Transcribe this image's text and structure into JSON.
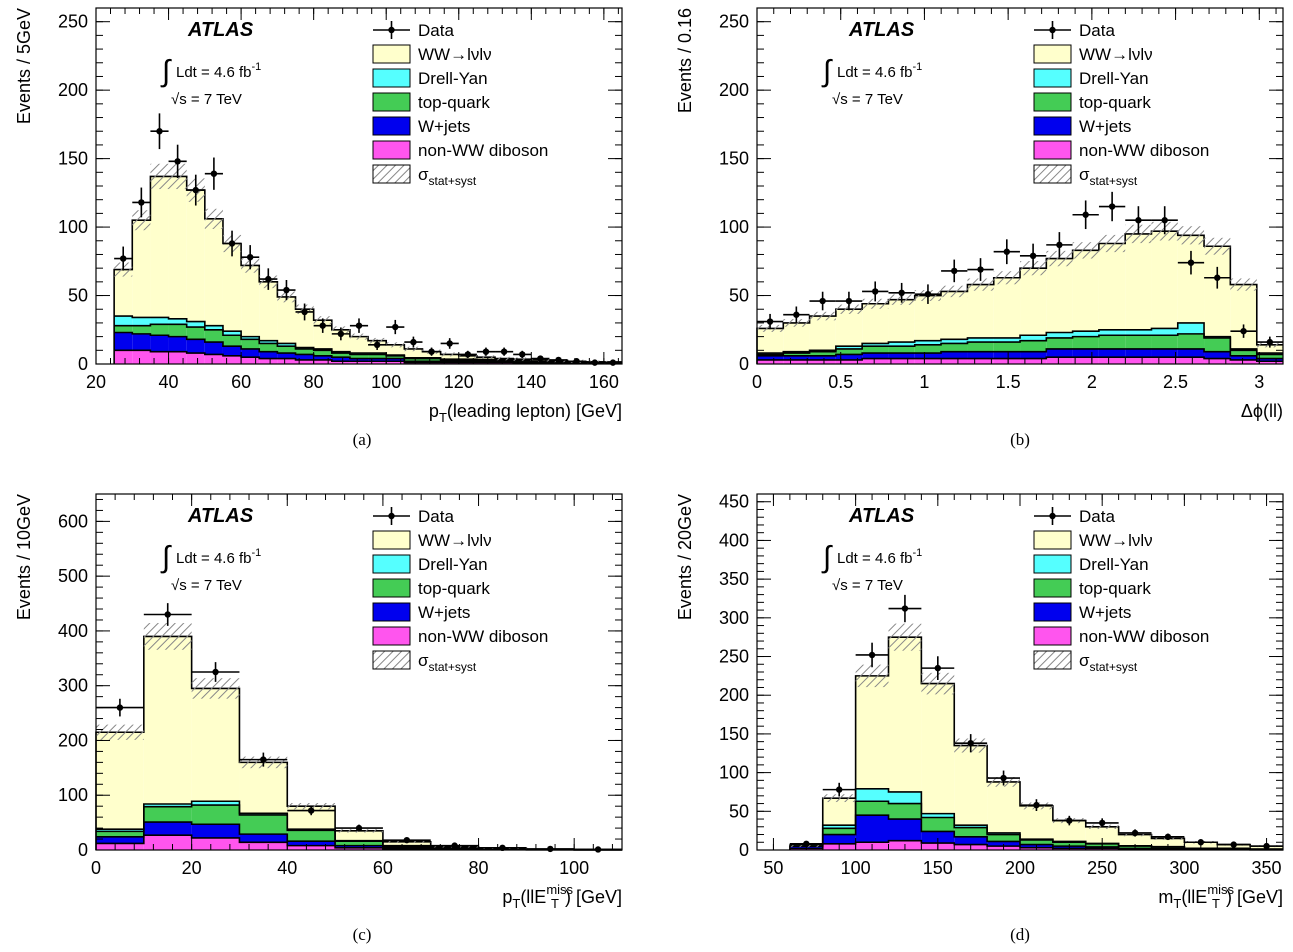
{
  "figure": {
    "experiment_label": "ATLAS",
    "lumi_text": "Ldt = 4.6 fb",
    "lumi_exp": "-1",
    "energy_text": "√s = 7 TeV"
  },
  "legend": [
    {
      "key": "data",
      "label": "Data"
    },
    {
      "key": "ww",
      "label": "WW→lνlν",
      "color": "#ffffcc"
    },
    {
      "key": "dy",
      "label": "Drell-Yan",
      "color": "#55ffff"
    },
    {
      "key": "top",
      "label": "top-quark",
      "color": "#44cc55"
    },
    {
      "key": "wjets",
      "label": "W+jets",
      "color": "#0000ee"
    },
    {
      "key": "diboson",
      "label": "non-WW diboson",
      "color": "#ff55ee"
    },
    {
      "key": "unc",
      "label": "σ",
      "sub": "stat+syst"
    }
  ],
  "chart_data": [
    {
      "panel": "a",
      "caption": "(a)",
      "type": "bar",
      "xlabel": "p",
      "xlabel_sub": "T",
      "xlabel_rest": "(leading lepton) [GeV]",
      "ylabel": "Events / 5GeV",
      "xlim": [
        20,
        165
      ],
      "ylim": [
        0,
        260
      ],
      "xticks": [
        20,
        40,
        60,
        80,
        100,
        120,
        140,
        160
      ],
      "yticks": [
        0,
        50,
        100,
        150,
        200,
        250
      ],
      "edges": [
        25,
        30,
        35,
        40,
        45,
        50,
        55,
        60,
        65,
        70,
        75,
        80,
        85,
        90,
        95,
        100,
        105,
        110,
        115,
        120,
        125,
        130,
        135,
        140,
        145,
        150,
        155,
        160,
        165
      ],
      "diboson": [
        10,
        10,
        9,
        9,
        8,
        7,
        6,
        5,
        4,
        4,
        3,
        3,
        2,
        2,
        2,
        2,
        1,
        1,
        1,
        1,
        1,
        1,
        0.5,
        0.5,
        0.5,
        0.5,
        0.5,
        0.5
      ],
      "wjets": [
        13,
        12,
        12,
        11,
        10,
        9,
        7,
        6,
        5,
        4,
        4,
        3,
        3,
        2,
        2,
        2,
        1,
        1,
        1,
        1,
        1,
        1,
        1,
        0.5,
        0.5,
        0.5,
        0.5,
        0.5
      ],
      "top": [
        5,
        6,
        8,
        9,
        9,
        9,
        8,
        7,
        6,
        5,
        4,
        4,
        3,
        3,
        3,
        2,
        2,
        2,
        1,
        1,
        1,
        1,
        1,
        0.5,
        0.5,
        0.5,
        0.3,
        0.3
      ],
      "dy": [
        7,
        6,
        5,
        4,
        4,
        3,
        3,
        2,
        2,
        2,
        1,
        1,
        1,
        1,
        1,
        0.5,
        0.5,
        0.5,
        0.5,
        0.5,
        0.3,
        0.3,
        0.3,
        0.3,
        0.2,
        0.2,
        0.2,
        0.2
      ],
      "total": [
        69,
        105,
        137,
        137,
        127,
        106,
        88,
        72,
        60,
        49,
        40,
        32,
        25,
        20,
        17,
        14,
        11,
        9,
        7,
        6,
        5,
        4,
        3.5,
        3,
        2.5,
        2,
        1.5,
        1.2
      ],
      "data": {
        "x": [
          27.5,
          32.5,
          37.5,
          42.5,
          47.5,
          52.5,
          57.5,
          62.5,
          67.5,
          72.5,
          77.5,
          82.5,
          87.5,
          92.5,
          97.5,
          102.5,
          107.5,
          112.5,
          117.5,
          122.5,
          127.5,
          132.5,
          137.5,
          142.5,
          147.5,
          152.5,
          157.5,
          162.5
        ],
        "y": [
          77,
          118,
          170,
          148,
          127,
          139,
          88,
          78,
          62,
          54,
          38,
          28,
          22,
          28,
          14,
          27,
          16,
          9,
          15,
          7,
          9,
          9,
          7,
          4,
          3,
          2,
          1,
          1
        ]
      }
    },
    {
      "panel": "b",
      "caption": "(b)",
      "type": "bar",
      "xlabel": "Δϕ(ll)",
      "ylabel": "Events / 0.16",
      "xlim": [
        0,
        3.14159
      ],
      "ylim": [
        0,
        260
      ],
      "xticks": [
        0,
        0.5,
        1,
        1.5,
        2,
        2.5,
        3
      ],
      "yticks": [
        0,
        50,
        100,
        150,
        200,
        250
      ],
      "edges": [
        0,
        0.157,
        0.314,
        0.471,
        0.628,
        0.785,
        0.942,
        1.099,
        1.257,
        1.414,
        1.571,
        1.728,
        1.885,
        2.042,
        2.199,
        2.356,
        2.513,
        2.67,
        2.827,
        2.985,
        3.142
      ],
      "diboson": [
        3,
        3,
        3,
        3,
        4,
        4,
        4,
        4,
        4,
        4,
        4,
        5,
        5,
        5,
        5,
        5,
        5,
        4,
        3,
        2
      ],
      "wjets": [
        3,
        3,
        3,
        4,
        4,
        4,
        4,
        5,
        5,
        5,
        5,
        6,
        6,
        6,
        6,
        6,
        6,
        5,
        3,
        2
      ],
      "top": [
        1,
        2,
        3,
        4,
        5,
        5,
        6,
        6,
        7,
        7,
        8,
        8,
        9,
        10,
        10,
        10,
        11,
        10,
        4,
        3
      ],
      "dy": [
        1,
        1,
        1,
        2,
        2,
        3,
        3,
        3,
        3,
        3,
        4,
        4,
        4,
        4,
        4,
        5,
        8,
        1,
        1,
        1
      ],
      "total": [
        26,
        30,
        35,
        40,
        44,
        47,
        50,
        53,
        58,
        63,
        70,
        77,
        83,
        88,
        95,
        97,
        94,
        86,
        58,
        14
      ],
      "data": {
        "x": [
          0.078,
          0.235,
          0.392,
          0.549,
          0.706,
          0.864,
          1.021,
          1.178,
          1.335,
          1.492,
          1.649,
          1.806,
          1.963,
          2.121,
          2.278,
          2.435,
          2.592,
          2.749,
          2.906,
          3.063
        ],
        "y": [
          31,
          36,
          46,
          46,
          53,
          52,
          51,
          68,
          69,
          82,
          79,
          87,
          109,
          115,
          105,
          105,
          74,
          63,
          24,
          16
        ]
      }
    },
    {
      "panel": "c",
      "caption": "(c)",
      "type": "bar",
      "xlabel": "p",
      "xlabel_sub": "T",
      "xlabel_rest": "(llE",
      "xlabel_sup": "miss",
      "xlabel_sub2": "T",
      "xlabel_end": ") [GeV]",
      "ylabel": "Events / 10GeV",
      "xlim": [
        0,
        110
      ],
      "ylim": [
        0,
        650
      ],
      "xticks": [
        0,
        20,
        40,
        60,
        80,
        100
      ],
      "yticks": [
        0,
        100,
        200,
        300,
        400,
        500,
        600
      ],
      "edges": [
        0,
        10,
        20,
        30,
        40,
        50,
        60,
        70,
        80,
        90,
        100,
        110
      ],
      "diboson": [
        12,
        27,
        22,
        14,
        8,
        4,
        2,
        1,
        0.5,
        0.3,
        0.2
      ],
      "wjets": [
        12,
        24,
        25,
        15,
        8,
        4,
        2,
        1,
        0.5,
        0.3,
        0.2
      ],
      "top": [
        10,
        28,
        35,
        35,
        20,
        8,
        3,
        1,
        0.5,
        0.3,
        0.2
      ],
      "dy": [
        4,
        5,
        7,
        3,
        2,
        1,
        1,
        0.5,
        0.2,
        0.1,
        0.1
      ],
      "total": [
        215,
        390,
        295,
        160,
        80,
        35,
        15,
        6,
        3,
        1.5,
        1
      ],
      "data": {
        "x": [
          5,
          15,
          25,
          35,
          45,
          55,
          65,
          75,
          85,
          95,
          105
        ],
        "y": [
          260,
          430,
          325,
          165,
          72,
          40,
          18,
          8,
          4,
          2,
          1
        ]
      }
    },
    {
      "panel": "d",
      "caption": "(d)",
      "type": "bar",
      "xlabel": "m",
      "xlabel_sub": "T",
      "xlabel_rest": "(llE",
      "xlabel_sup": "miss",
      "xlabel_sub2": "T",
      "xlabel_end": ") [GeV]",
      "ylabel": "Events / 20GeV",
      "xlim": [
        40,
        360
      ],
      "ylim": [
        0,
        460
      ],
      "xticks": [
        50,
        100,
        150,
        200,
        250,
        300,
        350
      ],
      "yticks": [
        0,
        50,
        100,
        150,
        200,
        250,
        300,
        350,
        400,
        450
      ],
      "edges": [
        60,
        80,
        100,
        120,
        140,
        160,
        180,
        200,
        220,
        240,
        260,
        280,
        300,
        320,
        340,
        360
      ],
      "diboson": [
        2,
        8,
        10,
        12,
        9,
        7,
        5,
        3,
        2,
        2,
        1,
        1,
        0.5,
        0.5,
        0.3
      ],
      "wjets": [
        3,
        12,
        35,
        28,
        15,
        10,
        6,
        4,
        3,
        2,
        1,
        1,
        0.5,
        0.5,
        0.3
      ],
      "top": [
        2,
        8,
        18,
        20,
        18,
        12,
        9,
        6,
        5,
        4,
        3,
        2,
        1,
        1,
        0.5
      ],
      "dy": [
        1,
        4,
        16,
        15,
        5,
        3,
        2,
        1,
        1,
        0.5,
        0.5,
        0.3,
        0.2,
        0.2,
        0.1
      ],
      "total": [
        5,
        67,
        225,
        275,
        215,
        135,
        88,
        57,
        38,
        30,
        20,
        15,
        10,
        7,
        5
      ],
      "data": {
        "x": [
          70,
          90,
          110,
          130,
          150,
          170,
          190,
          210,
          230,
          250,
          270,
          290,
          310,
          330,
          350
        ],
        "y": [
          8,
          78,
          252,
          312,
          235,
          138,
          93,
          58,
          38,
          35,
          22,
          17,
          10,
          7,
          5
        ]
      }
    }
  ]
}
